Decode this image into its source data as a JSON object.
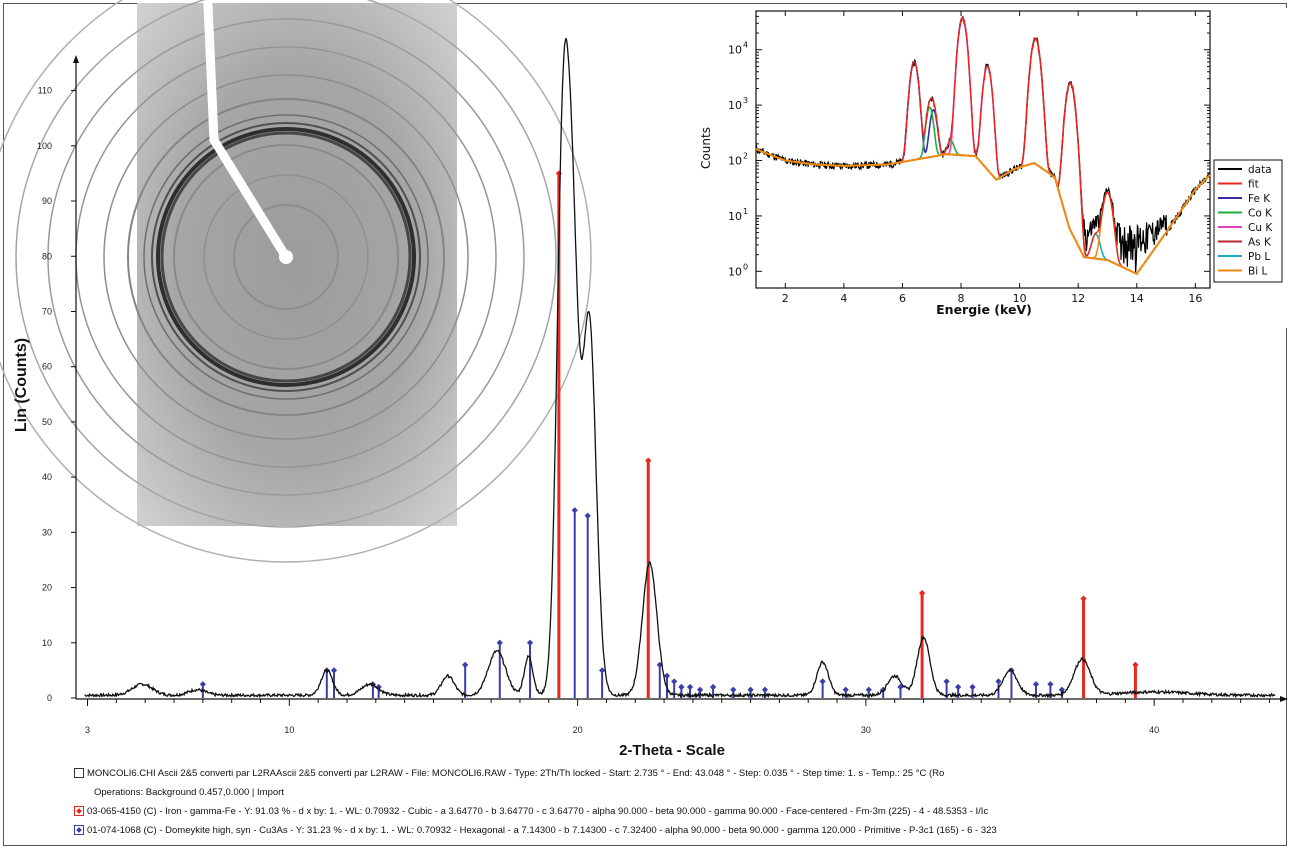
{
  "chart_data": [
    {
      "type": "line",
      "ylabel": "Lin (Counts)",
      "xlabel": "2-Theta - Scale",
      "xlim": [
        2.6,
        44.4
      ],
      "ylim": [
        0,
        115
      ],
      "x_ticks": [
        3,
        10,
        20,
        30,
        40
      ],
      "y_ticks": [
        0,
        10,
        20,
        30,
        40,
        50,
        60,
        70,
        80,
        90,
        100,
        110
      ],
      "pattern": {
        "name": "MONCOLI6.CHI",
        "baseline": 0.5,
        "peaks": [
          {
            "x": 4.9,
            "height": 2.0,
            "width": 0.35
          },
          {
            "x": 6.8,
            "height": 1.0,
            "width": 0.3
          },
          {
            "x": 11.3,
            "height": 4.5,
            "width": 0.2
          },
          {
            "x": 12.8,
            "height": 2.0,
            "width": 0.3
          },
          {
            "x": 15.5,
            "height": 3.5,
            "width": 0.22
          },
          {
            "x": 17.2,
            "height": 8.0,
            "width": 0.3
          },
          {
            "x": 18.3,
            "height": 7.0,
            "width": 0.15
          },
          {
            "x": 19.5,
            "height": 100.0,
            "width": 0.22
          },
          {
            "x": 19.85,
            "height": 62.0,
            "width": 0.2
          },
          {
            "x": 20.4,
            "height": 68.0,
            "width": 0.24
          },
          {
            "x": 22.5,
            "height": 24.0,
            "width": 0.25
          },
          {
            "x": 28.5,
            "height": 6.0,
            "width": 0.2
          },
          {
            "x": 31.0,
            "height": 3.5,
            "width": 0.25
          },
          {
            "x": 32.0,
            "height": 10.5,
            "width": 0.22
          },
          {
            "x": 35.0,
            "height": 4.5,
            "width": 0.25
          },
          {
            "x": 37.5,
            "height": 6.5,
            "width": 0.28
          },
          {
            "x": 40.0,
            "height": 0.6,
            "width": 1.2
          }
        ]
      },
      "reference_phases": [
        {
          "name": "03-065-4150 (C) - Iron - gamma-Fe",
          "color": "#e8281e",
          "sticks": [
            {
              "x": 19.35,
              "y": 95
            },
            {
              "x": 22.45,
              "y": 43
            },
            {
              "x": 31.95,
              "y": 19
            },
            {
              "x": 37.55,
              "y": 18
            },
            {
              "x": 39.35,
              "y": 6
            }
          ]
        },
        {
          "name": "01-074-1068 (C) - Domeykite high, syn - Cu3As",
          "color": "#3a3ea8",
          "sticks": [
            {
              "x": 7.0,
              "y": 2.5
            },
            {
              "x": 11.3,
              "y": 5
            },
            {
              "x": 11.55,
              "y": 5
            },
            {
              "x": 12.9,
              "y": 2.5
            },
            {
              "x": 13.1,
              "y": 2
            },
            {
              "x": 16.1,
              "y": 6
            },
            {
              "x": 17.3,
              "y": 10
            },
            {
              "x": 18.35,
              "y": 10
            },
            {
              "x": 19.9,
              "y": 34
            },
            {
              "x": 20.35,
              "y": 33
            },
            {
              "x": 20.85,
              "y": 5
            },
            {
              "x": 22.85,
              "y": 6
            },
            {
              "x": 23.1,
              "y": 4
            },
            {
              "x": 23.35,
              "y": 3
            },
            {
              "x": 23.6,
              "y": 2
            },
            {
              "x": 23.9,
              "y": 2
            },
            {
              "x": 24.25,
              "y": 1.5
            },
            {
              "x": 24.7,
              "y": 2
            },
            {
              "x": 25.4,
              "y": 1.5
            },
            {
              "x": 26.0,
              "y": 1.5
            },
            {
              "x": 26.5,
              "y": 1.5
            },
            {
              "x": 28.5,
              "y": 3
            },
            {
              "x": 29.3,
              "y": 1.5
            },
            {
              "x": 30.1,
              "y": 1.5
            },
            {
              "x": 30.6,
              "y": 1.5
            },
            {
              "x": 31.2,
              "y": 2
            },
            {
              "x": 32.8,
              "y": 3
            },
            {
              "x": 33.2,
              "y": 2
            },
            {
              "x": 33.7,
              "y": 2
            },
            {
              "x": 34.6,
              "y": 3
            },
            {
              "x": 35.05,
              "y": 5
            },
            {
              "x": 35.9,
              "y": 2.5
            },
            {
              "x": 36.4,
              "y": 2.5
            },
            {
              "x": 36.8,
              "y": 1.5
            }
          ]
        }
      ]
    },
    {
      "type": "line",
      "inset": true,
      "xlabel": "Energie (keV)",
      "ylabel": "Counts",
      "xscale": "linear",
      "yscale": "log",
      "xlim": [
        1.0,
        16.5
      ],
      "ylim": [
        0.5,
        50000
      ],
      "x_ticks": [
        2,
        4,
        6,
        8,
        10,
        12,
        14,
        16
      ],
      "y_ticks": [
        1,
        10,
        100,
        1000,
        10000
      ],
      "y_tick_labels": [
        "10",
        "10",
        "10",
        "10",
        "10"
      ],
      "y_tick_exponents": [
        "0",
        "1",
        "2",
        "3",
        "4"
      ],
      "legend_position": "right",
      "series": [
        {
          "name": "data",
          "color": "#000000"
        },
        {
          "name": "fit",
          "color": "#e8281e"
        },
        {
          "name": "Fe K",
          "color": "#3a2da8",
          "peaks": [
            {
              "e": 6.4,
              "amp": 6000,
              "w": 0.11
            },
            {
              "e": 7.06,
              "amp": 700,
              "w": 0.1
            }
          ]
        },
        {
          "name": "Co K",
          "color": "#1fb03a",
          "peaks": [
            {
              "e": 6.93,
              "amp": 800,
              "w": 0.1
            },
            {
              "e": 7.65,
              "amp": 100,
              "w": 0.1
            }
          ]
        },
        {
          "name": "Cu K",
          "color": "#e040c0",
          "peaks": [
            {
              "e": 8.05,
              "amp": 38000,
              "w": 0.11
            },
            {
              "e": 8.9,
              "amp": 5000,
              "w": 0.11
            }
          ]
        },
        {
          "name": "As K",
          "color": "#b8282e",
          "peaks": [
            {
              "e": 10.54,
              "amp": 16000,
              "w": 0.12
            },
            {
              "e": 11.73,
              "amp": 2500,
              "w": 0.12
            }
          ]
        },
        {
          "name": "Pb L",
          "color": "#20a8c0",
          "peaks": [
            {
              "e": 12.6,
              "amp": 3,
              "w": 0.12
            }
          ]
        },
        {
          "name": "Bi L",
          "color": "#f08a10",
          "peaks": [
            {
              "e": 13.0,
              "amp": 25,
              "w": 0.13
            }
          ]
        }
      ]
    }
  ],
  "legend": {
    "line1": "MONCOLI6.CHI                                           Ascii 2&5 converti par L2RAAscii 2&5 converti par L2RAW - File: MONCOLI6.RAW - Type: 2Th/Th locked - Start: 2.735 ° - End: 43.048 ° - Step: 0.035 ° - Step time: 1. s - Temp.: 25 °C (Ro",
    "line2": "Operations: Background 0.457,0.000 | Import",
    "line3": "03-065-4150 (C) - Iron - gamma-Fe - Y: 91.03 % - d x by: 1. - WL: 0.70932 - Cubic - a 3.64770 - b 3.64770 - c 3.64770 - alpha 90.000 - beta 90.000 - gamma 90.000 - Face-centered - Fm-3m (225) - 4 - 48.5353 - I/Ic",
    "line4": "01-074-1068 (C) - Domeykite high, syn - Cu3As - Y: 31.23 % - d x by: 1. - WL: 0.70932 - Hexagonal - a 7.14300 - b 7.14300 - c 7.32400 - alpha 90.000 - beta 90.000 - gamma 120.000 - Primitive - P-3c1 (165) - 6 - 323"
  }
}
